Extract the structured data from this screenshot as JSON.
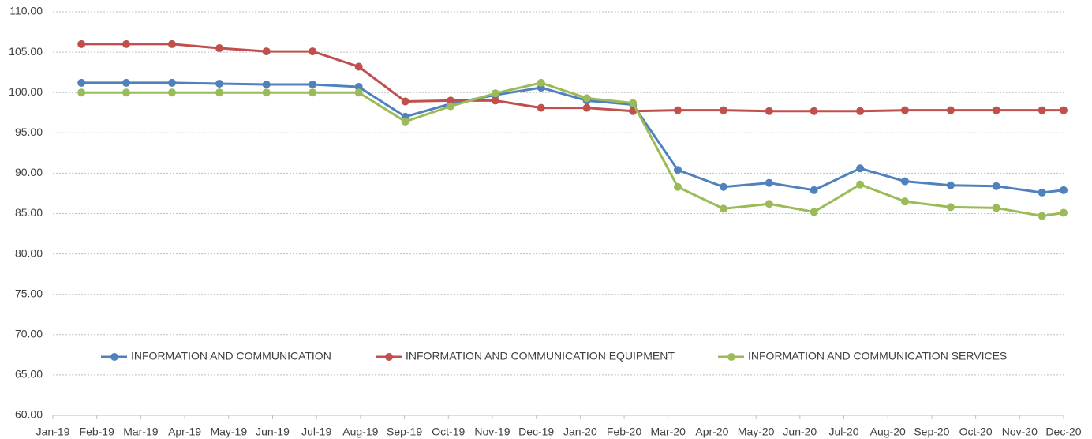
{
  "chart_data": {
    "type": "line",
    "x": [
      0.65,
      1.67,
      2.71,
      3.79,
      4.86,
      5.91,
      6.96,
      8.02,
      9.05,
      10.07,
      11.11,
      12.15,
      13.2,
      14.22,
      15.26,
      16.3,
      17.32,
      18.37,
      19.39,
      20.43,
      21.47,
      22.51,
      23.0
    ],
    "series": [
      {
        "name": "INFORMATION AND COMMUNICATION",
        "color": "#4f81bd",
        "values": [
          101.2,
          101.2,
          101.2,
          101.1,
          101.0,
          101.0,
          100.7,
          97.0,
          98.6,
          99.7,
          100.6,
          99.0,
          98.5,
          90.4,
          88.3,
          88.8,
          87.9,
          90.6,
          89.0,
          88.5,
          88.4,
          87.6,
          87.9
        ]
      },
      {
        "name": "INFORMATION AND COMMUNICATION EQUIPMENT",
        "color": "#c0504d",
        "values": [
          106.0,
          106.0,
          106.0,
          105.5,
          105.1,
          105.1,
          103.2,
          98.9,
          99.0,
          99.0,
          98.1,
          98.1,
          97.7,
          97.8,
          97.8,
          97.7,
          97.7,
          97.7,
          97.8,
          97.8,
          97.8,
          97.8,
          97.8
        ]
      },
      {
        "name": "INFORMATION AND COMMUNICATION SERVICES",
        "color": "#9bbb59",
        "values": [
          100.0,
          100.0,
          100.0,
          100.0,
          100.0,
          100.0,
          100.0,
          96.4,
          98.3,
          99.9,
          101.2,
          99.3,
          98.7,
          88.3,
          85.6,
          86.2,
          85.2,
          88.6,
          86.5,
          85.8,
          85.7,
          84.7,
          85.1
        ]
      }
    ],
    "xlim": [
      0,
      23
    ],
    "xticks": [
      {
        "value": 0,
        "label": "Jan-19"
      },
      {
        "value": 1,
        "label": "Feb-19"
      },
      {
        "value": 2,
        "label": "Mar-19"
      },
      {
        "value": 3,
        "label": "Apr-19"
      },
      {
        "value": 4,
        "label": "May-19"
      },
      {
        "value": 5,
        "label": "Jun-19"
      },
      {
        "value": 6,
        "label": "Jul-19"
      },
      {
        "value": 7,
        "label": "Aug-19"
      },
      {
        "value": 8,
        "label": "Sep-19"
      },
      {
        "value": 9,
        "label": "Oct-19"
      },
      {
        "value": 10,
        "label": "Nov-19"
      },
      {
        "value": 11,
        "label": "Dec-19"
      },
      {
        "value": 12,
        "label": "Jan-20"
      },
      {
        "value": 13,
        "label": "Feb-20"
      },
      {
        "value": 14,
        "label": "Mar-20"
      },
      {
        "value": 15,
        "label": "Apr-20"
      },
      {
        "value": 16,
        "label": "May-20"
      },
      {
        "value": 17,
        "label": "Jun-20"
      },
      {
        "value": 18,
        "label": "Jul-20"
      },
      {
        "value": 19,
        "label": "Aug-20"
      },
      {
        "value": 20,
        "label": "Sep-20"
      },
      {
        "value": 21,
        "label": "Oct-20"
      },
      {
        "value": 22,
        "label": "Nov-20"
      },
      {
        "value": 23,
        "label": "Dec-20"
      }
    ],
    "ylim": [
      60,
      110
    ],
    "yticks": [
      {
        "value": 60,
        "label": "60.00"
      },
      {
        "value": 65,
        "label": "65.00"
      },
      {
        "value": 70,
        "label": "70.00"
      },
      {
        "value": 75,
        "label": "75.00"
      },
      {
        "value": 80,
        "label": "80.00"
      },
      {
        "value": 85,
        "label": "85.00"
      },
      {
        "value": 90,
        "label": "90.00"
      },
      {
        "value": 95,
        "label": "95.00"
      },
      {
        "value": 100,
        "label": "100.00"
      },
      {
        "value": 105,
        "label": "105.00"
      },
      {
        "value": 110,
        "label": "110.00"
      }
    ],
    "grid": true
  }
}
